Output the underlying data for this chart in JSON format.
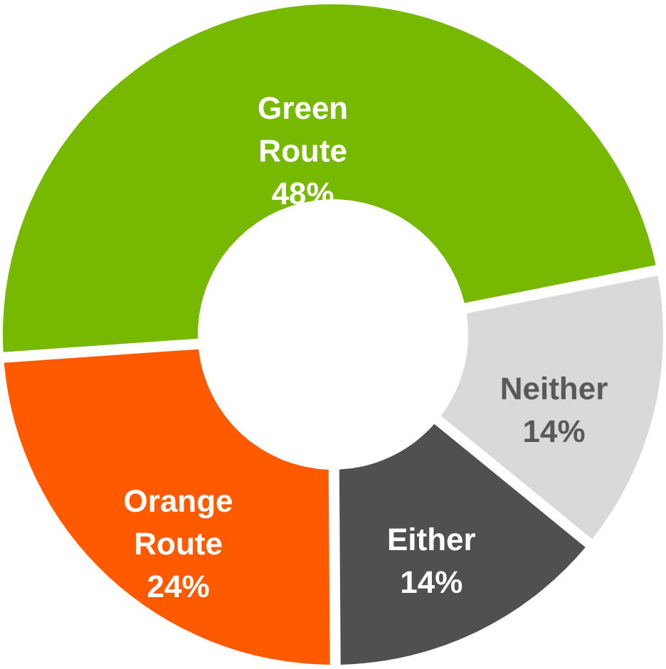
{
  "chart_data": {
    "type": "donut",
    "categories": [
      "Green Route",
      "Neither",
      "Either",
      "Orange Route"
    ],
    "values": [
      48,
      14,
      14,
      24
    ],
    "colors": [
      "#76b900",
      "#d9d9d9",
      "#505050",
      "#ff5a00"
    ],
    "value_labels": [
      "48%",
      "14%",
      "14%",
      "24%"
    ]
  }
}
